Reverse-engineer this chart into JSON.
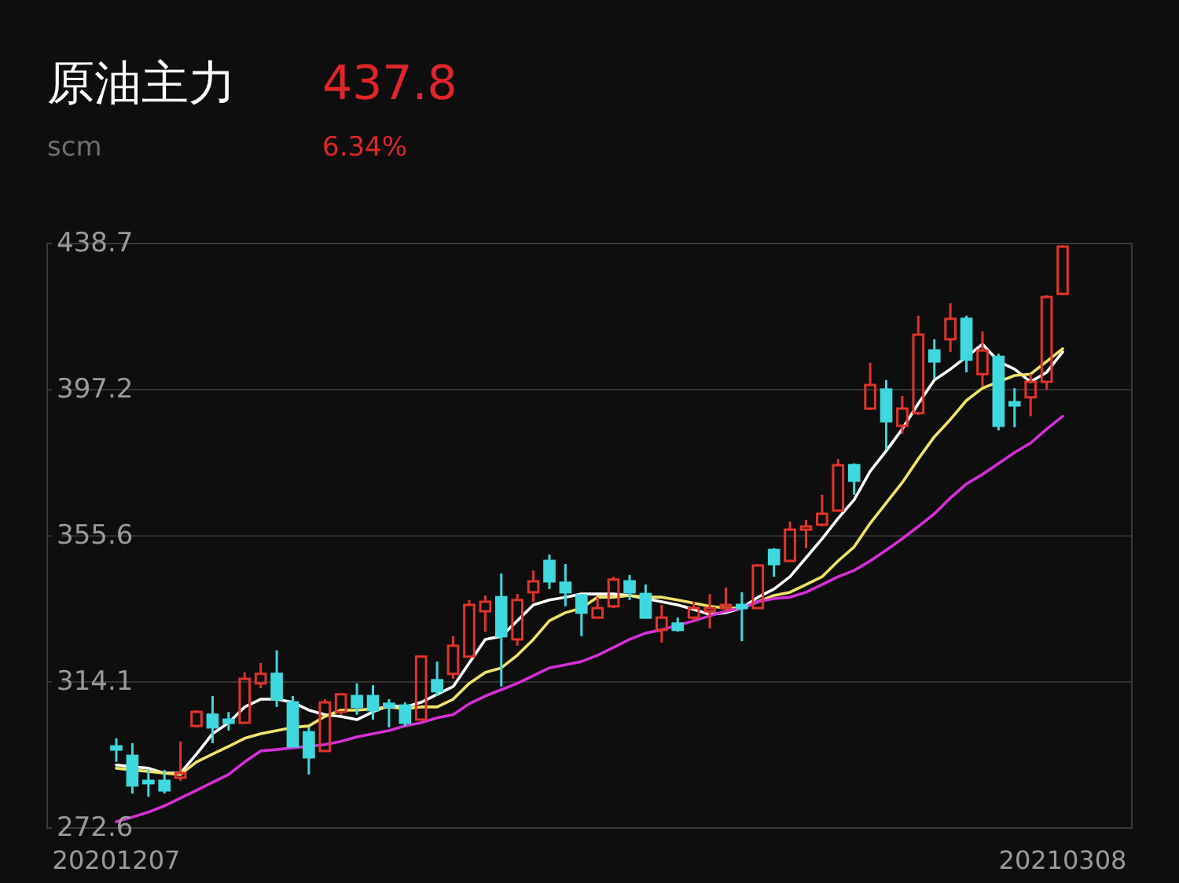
{
  "chart_data": {
    "type": "candlestick",
    "title": "原油主力",
    "subtitle": "scm",
    "annotations": [
      "437.8",
      "6.34%"
    ],
    "categories": [
      "20201207",
      null,
      null,
      null,
      null,
      null,
      null,
      null,
      null,
      null,
      null,
      null,
      null,
      null,
      null,
      null,
      null,
      null,
      null,
      null,
      null,
      null,
      null,
      null,
      null,
      null,
      null,
      null,
      null,
      null,
      null,
      null,
      null,
      null,
      null,
      null,
      null,
      null,
      null,
      null,
      null,
      null,
      null,
      null,
      null,
      null,
      null,
      null,
      null,
      null,
      null,
      null,
      null,
      null,
      null,
      null,
      null,
      null,
      null,
      "20210308"
    ],
    "ohlc": [
      [
        295.8,
        298.1,
        291.4,
        294.9
      ],
      [
        293.1,
        296.7,
        282.4,
        284.7
      ],
      [
        286.0,
        289.1,
        281.5,
        285.6
      ],
      [
        286.0,
        289.1,
        282.4,
        283.3
      ],
      [
        286.9,
        297.2,
        286.0,
        288.2
      ],
      [
        301.6,
        306.1,
        301.2,
        305.6
      ],
      [
        304.8,
        310.1,
        296.7,
        301.2
      ],
      [
        303.4,
        305.6,
        300.3,
        302.5
      ],
      [
        302.5,
        316.8,
        302.5,
        315.0
      ],
      [
        313.7,
        319.5,
        312.3,
        316.4
      ],
      [
        316.4,
        323.1,
        307.0,
        309.2
      ],
      [
        308.3,
        310.1,
        295.8,
        295.8
      ],
      [
        299.8,
        301.2,
        287.8,
        292.7
      ],
      [
        294.5,
        309.2,
        294.5,
        308.3
      ],
      [
        305.6,
        310.6,
        304.8,
        310.6
      ],
      [
        310.1,
        313.7,
        304.8,
        307.0
      ],
      [
        310.1,
        313.2,
        303.4,
        306.1
      ],
      [
        307.9,
        309.2,
        301.2,
        307.0
      ],
      [
        307.4,
        308.3,
        301.6,
        302.5
      ],
      [
        303.4,
        321.7,
        303.4,
        321.3
      ],
      [
        314.6,
        319.9,
        310.1,
        311.5
      ],
      [
        316.4,
        327.1,
        315.0,
        324.4
      ],
      [
        321.3,
        337.4,
        321.3,
        336.0
      ],
      [
        334.2,
        338.7,
        328.4,
        336.9
      ],
      [
        338.2,
        344.9,
        312.8,
        327.1
      ],
      [
        326.2,
        339.1,
        324.4,
        337.4
      ],
      [
        339.6,
        345.8,
        336.9,
        342.7
      ],
      [
        348.5,
        350.3,
        340.5,
        342.7
      ],
      [
        342.3,
        347.6,
        335.6,
        339.6
      ],
      [
        338.7,
        339.1,
        327.1,
        333.8
      ],
      [
        332.4,
        338.2,
        332.4,
        335.1
      ],
      [
        335.6,
        344.0,
        335.1,
        343.2
      ],
      [
        342.7,
        344.5,
        337.4,
        339.6
      ],
      [
        339.1,
        341.8,
        332.4,
        332.4
      ],
      [
        328.9,
        336.0,
        325.3,
        332.4
      ],
      [
        330.7,
        332.4,
        328.4,
        328.9
      ],
      [
        332.4,
        336.9,
        331.5,
        335.1
      ],
      [
        334.2,
        339.1,
        329.3,
        335.1
      ],
      [
        335.1,
        340.9,
        334.2,
        336.0
      ],
      [
        336.0,
        339.6,
        325.7,
        335.1
      ],
      [
        335.1,
        347.6,
        335.1,
        347.2
      ],
      [
        351.6,
        352.1,
        344.0,
        347.6
      ],
      [
        348.5,
        359.7,
        348.5,
        357.4
      ],
      [
        357.4,
        360.1,
        352.1,
        358.3
      ],
      [
        358.8,
        367.3,
        358.3,
        361.9
      ],
      [
        362.8,
        377.5,
        362.8,
        375.7
      ],
      [
        375.7,
        376.2,
        367.3,
        371.3
      ],
      [
        391.8,
        404.8,
        391.4,
        398.5
      ],
      [
        397.2,
        399.9,
        380.2,
        388.2
      ],
      [
        386.9,
        395.4,
        384.7,
        391.8
      ],
      [
        390.5,
        418.2,
        390.0,
        412.8
      ],
      [
        408.3,
        411.5,
        400.3,
        405.2
      ],
      [
        411.5,
        421.7,
        407.9,
        417.3
      ],
      [
        417.3,
        418.2,
        402.1,
        405.7
      ],
      [
        401.6,
        413.7,
        398.1,
        408.3
      ],
      [
        406.5,
        407.4,
        385.6,
        386.9
      ],
      [
        393.6,
        397.6,
        386.5,
        392.7
      ],
      [
        395.0,
        401.6,
        389.6,
        399.4
      ],
      [
        399.4,
        424.0,
        397.2,
        423.5
      ],
      [
        424.4,
        438.2,
        424.0,
        437.8
      ]
    ],
    "series": [
      {
        "type": "line",
        "color": "#ffffff",
        "values": [
          290.5,
          290.0,
          289.6,
          288.2,
          288.2,
          293.6,
          299.4,
          302.5,
          307.0,
          309.2,
          309.2,
          308.3,
          306.1,
          304.8,
          304.3,
          303.4,
          305.6,
          307.4,
          307.0,
          308.3,
          310.6,
          312.8,
          319.5,
          326.2,
          327.1,
          331.5,
          336.0,
          337.4,
          338.2,
          339.1,
          339.1,
          339.1,
          338.7,
          337.8,
          336.9,
          336.0,
          334.7,
          333.3,
          333.8,
          335.1,
          338.2,
          340.5,
          344.0,
          349.4,
          354.8,
          360.6,
          365.9,
          374.0,
          379.8,
          386.0,
          393.2,
          399.9,
          403.0,
          406.5,
          410.1,
          405.2,
          403.0,
          399.4,
          402.1,
          407.9
        ]
      },
      {
        "type": "line",
        "color": "#f0e36a",
        "values": [
          289.6,
          289.1,
          288.7,
          288.2,
          287.8,
          291.4,
          293.6,
          295.8,
          298.1,
          299.4,
          300.3,
          301.2,
          301.6,
          304.3,
          306.1,
          306.1,
          306.5,
          307.0,
          306.5,
          307.0,
          307.0,
          309.2,
          313.7,
          316.8,
          318.1,
          321.7,
          326.2,
          331.5,
          333.8,
          335.1,
          338.2,
          338.2,
          338.7,
          338.2,
          338.2,
          337.4,
          336.5,
          335.6,
          335.1,
          335.1,
          336.9,
          338.7,
          339.6,
          341.8,
          344.0,
          348.5,
          352.5,
          359.2,
          365.0,
          370.8,
          377.5,
          383.8,
          388.7,
          394.1,
          397.6,
          399.4,
          401.2,
          401.6,
          405.2,
          408.8
        ]
      },
      {
        "type": "line",
        "color": "#d62fd6",
        "values": [
          274.4,
          275.7,
          277.1,
          278.9,
          281.1,
          283.3,
          285.6,
          287.8,
          291.4,
          294.5,
          294.9,
          295.4,
          295.8,
          296.3,
          297.2,
          298.5,
          299.4,
          300.3,
          301.6,
          302.5,
          303.9,
          304.8,
          307.9,
          310.1,
          311.9,
          313.7,
          315.9,
          318.1,
          319.0,
          319.9,
          321.7,
          323.9,
          326.2,
          328.0,
          328.9,
          330.2,
          331.5,
          332.9,
          334.2,
          335.1,
          336.9,
          337.8,
          338.2,
          339.6,
          341.8,
          344.0,
          345.8,
          348.5,
          351.6,
          354.8,
          358.3,
          361.9,
          366.4,
          370.4,
          373.1,
          376.2,
          379.3,
          382.0,
          386.0,
          389.6
        ]
      }
    ],
    "ylim": [
      272.6,
      438.7
    ],
    "yticks": [
      272.6,
      314.1,
      355.6,
      397.2,
      438.7
    ],
    "grid": "y"
  }
}
